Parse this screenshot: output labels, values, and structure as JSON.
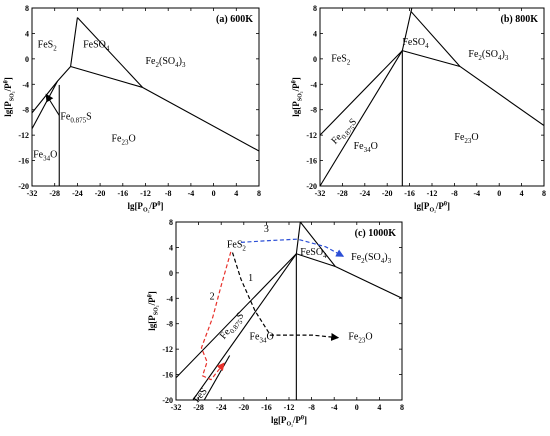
{
  "chart_data": [
    {
      "type": "phase-diagram",
      "title": "(a) 600K",
      "xlabel": {
        "main": "lg[P",
        "sub": "O₂",
        "tail": "/P",
        "sup": "θ",
        "end": "]"
      },
      "ylabel": {
        "main": "lg[P",
        "sub": "SO₂",
        "tail": "/P",
        "sup": "θ",
        "end": "]"
      },
      "xlim": [
        -32,
        8
      ],
      "ylim": [
        -20,
        8
      ],
      "xticks": [
        -32,
        -28,
        -24,
        -20,
        -16,
        -12,
        -8,
        -4,
        0,
        4,
        8
      ],
      "yticks": [
        8,
        4,
        0,
        -4,
        -8,
        -12,
        -16,
        -20
      ],
      "phases": [
        {
          "name": "FeS",
          "sub": "2",
          "x": -31,
          "y": 1.8
        },
        {
          "name": "FeSO",
          "sub": "4",
          "x": -23,
          "y": 1.8
        },
        {
          "name": "Fe",
          "sub": "2",
          "mid": "(SO",
          "sub2": "4",
          "end": ")",
          "sub3": "3",
          "x": -12,
          "y": -0.8
        },
        {
          "name": "Fe",
          "sub": "0.875",
          "end": "S",
          "x": -27,
          "y": -9.5
        },
        {
          "name": "Fe",
          "sub": "2",
          "end": "O",
          "sub2": "3",
          "x": -18,
          "y": -13
        },
        {
          "name": "Fe",
          "sub": "3",
          "end": "O",
          "sub2": "4",
          "x": -31.8,
          "y": -15.5
        }
      ],
      "boundaries": [
        [
          [
            -32,
            -8.5
          ],
          [
            -27.5,
            -3.5
          ],
          [
            -25.2,
            -1.2
          ]
        ],
        [
          [
            -32,
            -11
          ],
          [
            -27.5,
            -3.5
          ]
        ],
        [
          [
            -25.2,
            -1.2
          ],
          [
            -24,
            6.5
          ]
        ],
        [
          [
            -24,
            6.5
          ],
          [
            -12.5,
            -4.5
          ]
        ],
        [
          [
            -25.2,
            -1.2
          ],
          [
            -12.5,
            -4.5
          ]
        ],
        [
          [
            -12.5,
            -4.5
          ],
          [
            8,
            -14.5
          ]
        ],
        [
          [
            -27.2,
            -4.1
          ],
          [
            -27.2,
            -20
          ]
        ]
      ],
      "annotations": [
        {
          "type": "arrow",
          "from": [
            -27.2,
            -8.9
          ],
          "to": [
            -29.5,
            -5.6
          ]
        }
      ]
    },
    {
      "type": "phase-diagram",
      "title": "(b) 800K",
      "xlabel": {
        "main": "lg[P",
        "sub": "O₂",
        "tail": "/P",
        "sup": "θ",
        "end": "]"
      },
      "ylabel": {
        "main": "lg[P",
        "sub": "SO₂",
        "tail": "/P",
        "sup": "θ",
        "end": "]"
      },
      "xlim": [
        -32,
        8
      ],
      "ylim": [
        -20,
        8
      ],
      "xticks": [
        -32,
        -28,
        -24,
        -20,
        -16,
        -12,
        -8,
        -4,
        0,
        4,
        8
      ],
      "yticks": [
        8,
        4,
        0,
        -4,
        -8,
        -12,
        -16,
        -20
      ],
      "phases": [
        {
          "name": "FeS",
          "sub": "2",
          "x": -30,
          "y": -0.4
        },
        {
          "name": "FeSO",
          "sub": "4",
          "x": -17.3,
          "y": 2.2
        },
        {
          "name": "Fe",
          "sub": "2",
          "mid": "(SO",
          "sub2": "4",
          "end": ")",
          "sub3": "3",
          "x": -5.5,
          "y": 0.3
        },
        {
          "name": "Fe",
          "sub": "3",
          "end": "O",
          "sub2": "4",
          "x": -26,
          "y": -14.2
        },
        {
          "name": "Fe",
          "sub": "2",
          "end": "O",
          "sub2": "3",
          "x": -8,
          "y": -12.8
        }
      ],
      "rotated_labels": [
        {
          "name": "Fe",
          "sub": "0.875",
          "end": "S",
          "x": -29.3,
          "y": -13.5,
          "angle": -46
        }
      ],
      "boundaries": [
        [
          [
            -32,
            -12
          ],
          [
            -17.3,
            1.3
          ]
        ],
        [
          [
            -32,
            -20
          ],
          [
            -17.3,
            1.3
          ]
        ],
        [
          [
            -17.3,
            1.3
          ],
          [
            -15.6,
            8
          ]
        ],
        [
          [
            -15.8,
            7.5
          ],
          [
            -7,
            -1.2
          ]
        ],
        [
          [
            -17.3,
            1.3
          ],
          [
            -7,
            -1.2
          ]
        ],
        [
          [
            -7,
            -1.2
          ],
          [
            8,
            -10.5
          ]
        ],
        [
          [
            -17.3,
            1.3
          ],
          [
            -17.3,
            -20
          ]
        ]
      ]
    },
    {
      "type": "phase-diagram",
      "title": "(c) 1000K",
      "xlabel": {
        "main": "lg[P",
        "sub": "O₂",
        "tail": "/P",
        "sup": "θ",
        "end": "]"
      },
      "ylabel": {
        "main": "lg[P",
        "sub": "SO₂",
        "tail": "/P",
        "sup": "θ",
        "end": "]"
      },
      "xlim": [
        -32,
        8
      ],
      "ylim": [
        -20,
        8
      ],
      "xticks": [
        -32,
        -28,
        -24,
        -20,
        -16,
        -12,
        -8,
        -4,
        0,
        4,
        8
      ],
      "yticks": [
        8,
        4,
        0,
        -4,
        -8,
        -12,
        -16,
        -20
      ],
      "phases": [
        {
          "name": "FeS",
          "sub": "2",
          "x": -23,
          "y": 4
        },
        {
          "name": "FeSO",
          "sub": "4",
          "x": -10,
          "y": 2.8
        },
        {
          "name": "Fe",
          "sub": "2",
          "mid": "(SO",
          "sub2": "4",
          "end": ")",
          "sub3": "3",
          "x": -1,
          "y": 2
        },
        {
          "name": "Fe",
          "sub": "3",
          "end": "O",
          "sub2": "4",
          "x": -19,
          "y": -10.5
        },
        {
          "name": "Fe",
          "sub": "2",
          "end": "O",
          "sub2": "3",
          "x": -1.5,
          "y": -10.5
        }
      ],
      "rotated_labels": [
        {
          "name": "Fe",
          "sub": "0.875",
          "end": "S",
          "x": -23.5,
          "y": -10.5,
          "angle": -50
        },
        {
          "name": "FeS",
          "sub": "",
          "end": "",
          "x": -28.2,
          "y": -20.5,
          "angle": -50
        }
      ],
      "boundaries": [
        [
          [
            -32,
            -16.5
          ],
          [
            -10.7,
            3
          ]
        ],
        [
          [
            -29,
            -20
          ],
          [
            -10.7,
            3
          ]
        ],
        [
          [
            -27,
            -20
          ],
          [
            -22.5,
            -13
          ]
        ],
        [
          [
            -10.7,
            3
          ],
          [
            -10,
            8
          ]
        ],
        [
          [
            -10,
            8
          ],
          [
            -3.8,
            1
          ]
        ],
        [
          [
            -10.7,
            3
          ],
          [
            -3.8,
            1
          ]
        ],
        [
          [
            -3.8,
            1
          ],
          [
            8,
            -4
          ]
        ],
        [
          [
            -10.7,
            3
          ],
          [
            -10.7,
            -20
          ]
        ]
      ],
      "paths": [
        {
          "name": "1",
          "color": "#000000",
          "points": [
            [
              -22,
              3.2
            ],
            [
              -20.5,
              -1
            ],
            [
              -18,
              -6
            ],
            [
              -15.3,
              -9.8
            ],
            [
              -7.8,
              -9.8
            ],
            [
              -3.3,
              -10.2
            ]
          ],
          "label_at": [
            -18.8,
            -1.3
          ]
        },
        {
          "name": "2",
          "color": "#e8302a",
          "points": [
            [
              -22.3,
              3.3
            ],
            [
              -24,
              -2
            ],
            [
              -25.5,
              -7
            ],
            [
              -27.5,
              -11.8
            ],
            [
              -26.5,
              -14
            ],
            [
              -27.3,
              -16.2
            ],
            [
              -25.8,
              -16.8
            ],
            [
              -23.5,
              -14.2
            ]
          ],
          "label_at": [
            -25.6,
            -4.2
          ]
        },
        {
          "name": "3",
          "color": "#2c4fd6",
          "points": [
            [
              -20.5,
              4.8
            ],
            [
              -15,
              5.1
            ],
            [
              -10.5,
              5.3
            ],
            [
              -5.5,
              4.1
            ],
            [
              -2.4,
              2.6
            ]
          ],
          "label_at": [
            -16,
            6.4
          ]
        }
      ]
    }
  ]
}
